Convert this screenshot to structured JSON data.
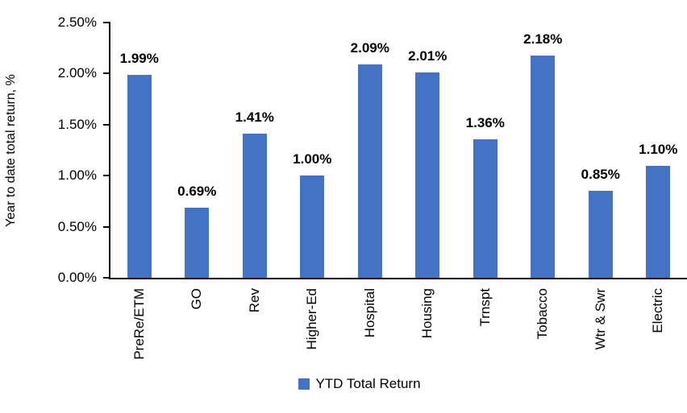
{
  "chart_data": {
    "type": "bar",
    "title": "",
    "xlabel": "",
    "ylabel": "Year to date total return, %",
    "categories": [
      "PreRe/ETM",
      "GO",
      "Rev",
      "Higher-Ed",
      "Hospital",
      "Housing",
      "Trnspt",
      "Tobacco",
      "Wtr & Swr",
      "Electric"
    ],
    "values": [
      1.99,
      0.69,
      1.41,
      1.0,
      2.09,
      2.01,
      1.36,
      2.18,
      0.85,
      1.1
    ],
    "value_labels": [
      "1.99%",
      "0.69%",
      "1.41%",
      "1.00%",
      "2.09%",
      "2.01%",
      "1.36%",
      "2.18%",
      "0.85%",
      "1.10%"
    ],
    "yticks": [
      {
        "label": "2.50%",
        "value": 2.5
      },
      {
        "label": "2.00%",
        "value": 2.0
      },
      {
        "label": "1.50%",
        "value": 1.5
      },
      {
        "label": "1.00%",
        "value": 1.0
      },
      {
        "label": "0.50%",
        "value": 0.5
      },
      {
        "label": "0.00%",
        "value": 0.0
      }
    ],
    "ylim": [
      0,
      2.5
    ],
    "grid": false,
    "legend": {
      "label": "YTD Total Return",
      "position": "bottom"
    },
    "colors": {
      "bar": "#4472C4",
      "axis": "#000000",
      "text": "#000000",
      "background": "#FFFFFF"
    }
  }
}
